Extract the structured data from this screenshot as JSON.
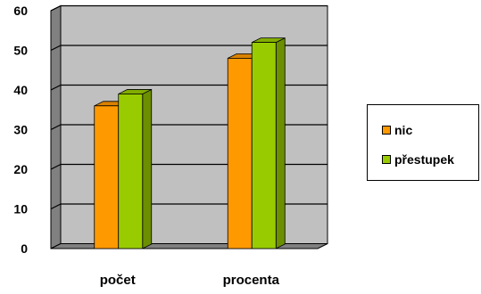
{
  "chart_data": {
    "type": "bar",
    "categories": [
      "počet",
      "procenta"
    ],
    "series": [
      {
        "name": "nic",
        "values": [
          36,
          48
        ],
        "color": "#ff9900"
      },
      {
        "name": "přestupek",
        "values": [
          39,
          52
        ],
        "color": "#99cc00"
      }
    ],
    "ylim": [
      0,
      60
    ],
    "yticks": [
      0,
      10,
      20,
      30,
      40,
      50,
      60
    ],
    "grid": true,
    "legend_position": "right",
    "title": "",
    "xlabel": "",
    "ylabel": ""
  }
}
